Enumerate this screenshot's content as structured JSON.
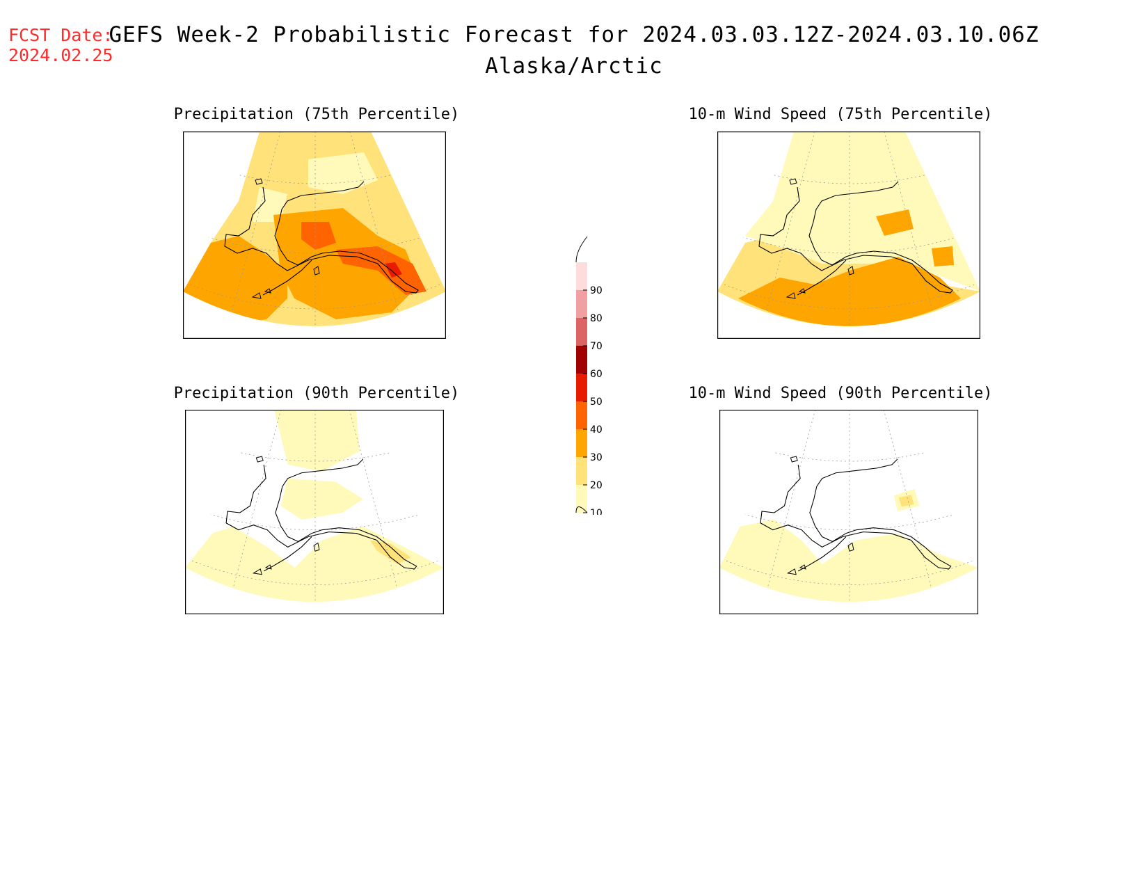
{
  "forecast_date": {
    "label": "FCST Date:",
    "value": "2024.02.25"
  },
  "title": {
    "line1": "GEFS Week-2 Probabilistic Forecast for 2024.03.03.12Z-2024.03.10.06Z",
    "line2": "Alaska/Arctic"
  },
  "panels": [
    {
      "id": "precip75",
      "title": "Precipitation (75th Percentile)"
    },
    {
      "id": "wind75",
      "title": "10-m Wind Speed (75th Percentile)"
    },
    {
      "id": "precip90",
      "title": "Precipitation (90th Percentile)"
    },
    {
      "id": "wind90",
      "title": "10-m Wind Speed (90th Percentile)"
    }
  ],
  "colorbar": {
    "levels": [
      "10",
      "20",
      "30",
      "40",
      "50",
      "60",
      "70",
      "80",
      "90"
    ],
    "colors": {
      "10-20": "#fffaba",
      "20-30": "#ffe27a",
      "30-40": "#ffa500",
      "40-50": "#ff6400",
      "50-60": "#e81a00",
      "60-70": "#a00000",
      "70-80": "#dc6464",
      "80-90": "#f0a0a0",
      "90-100": "#ffdcdc"
    }
  },
  "colors": {
    "forecast_date": "#ff2a2a"
  }
}
